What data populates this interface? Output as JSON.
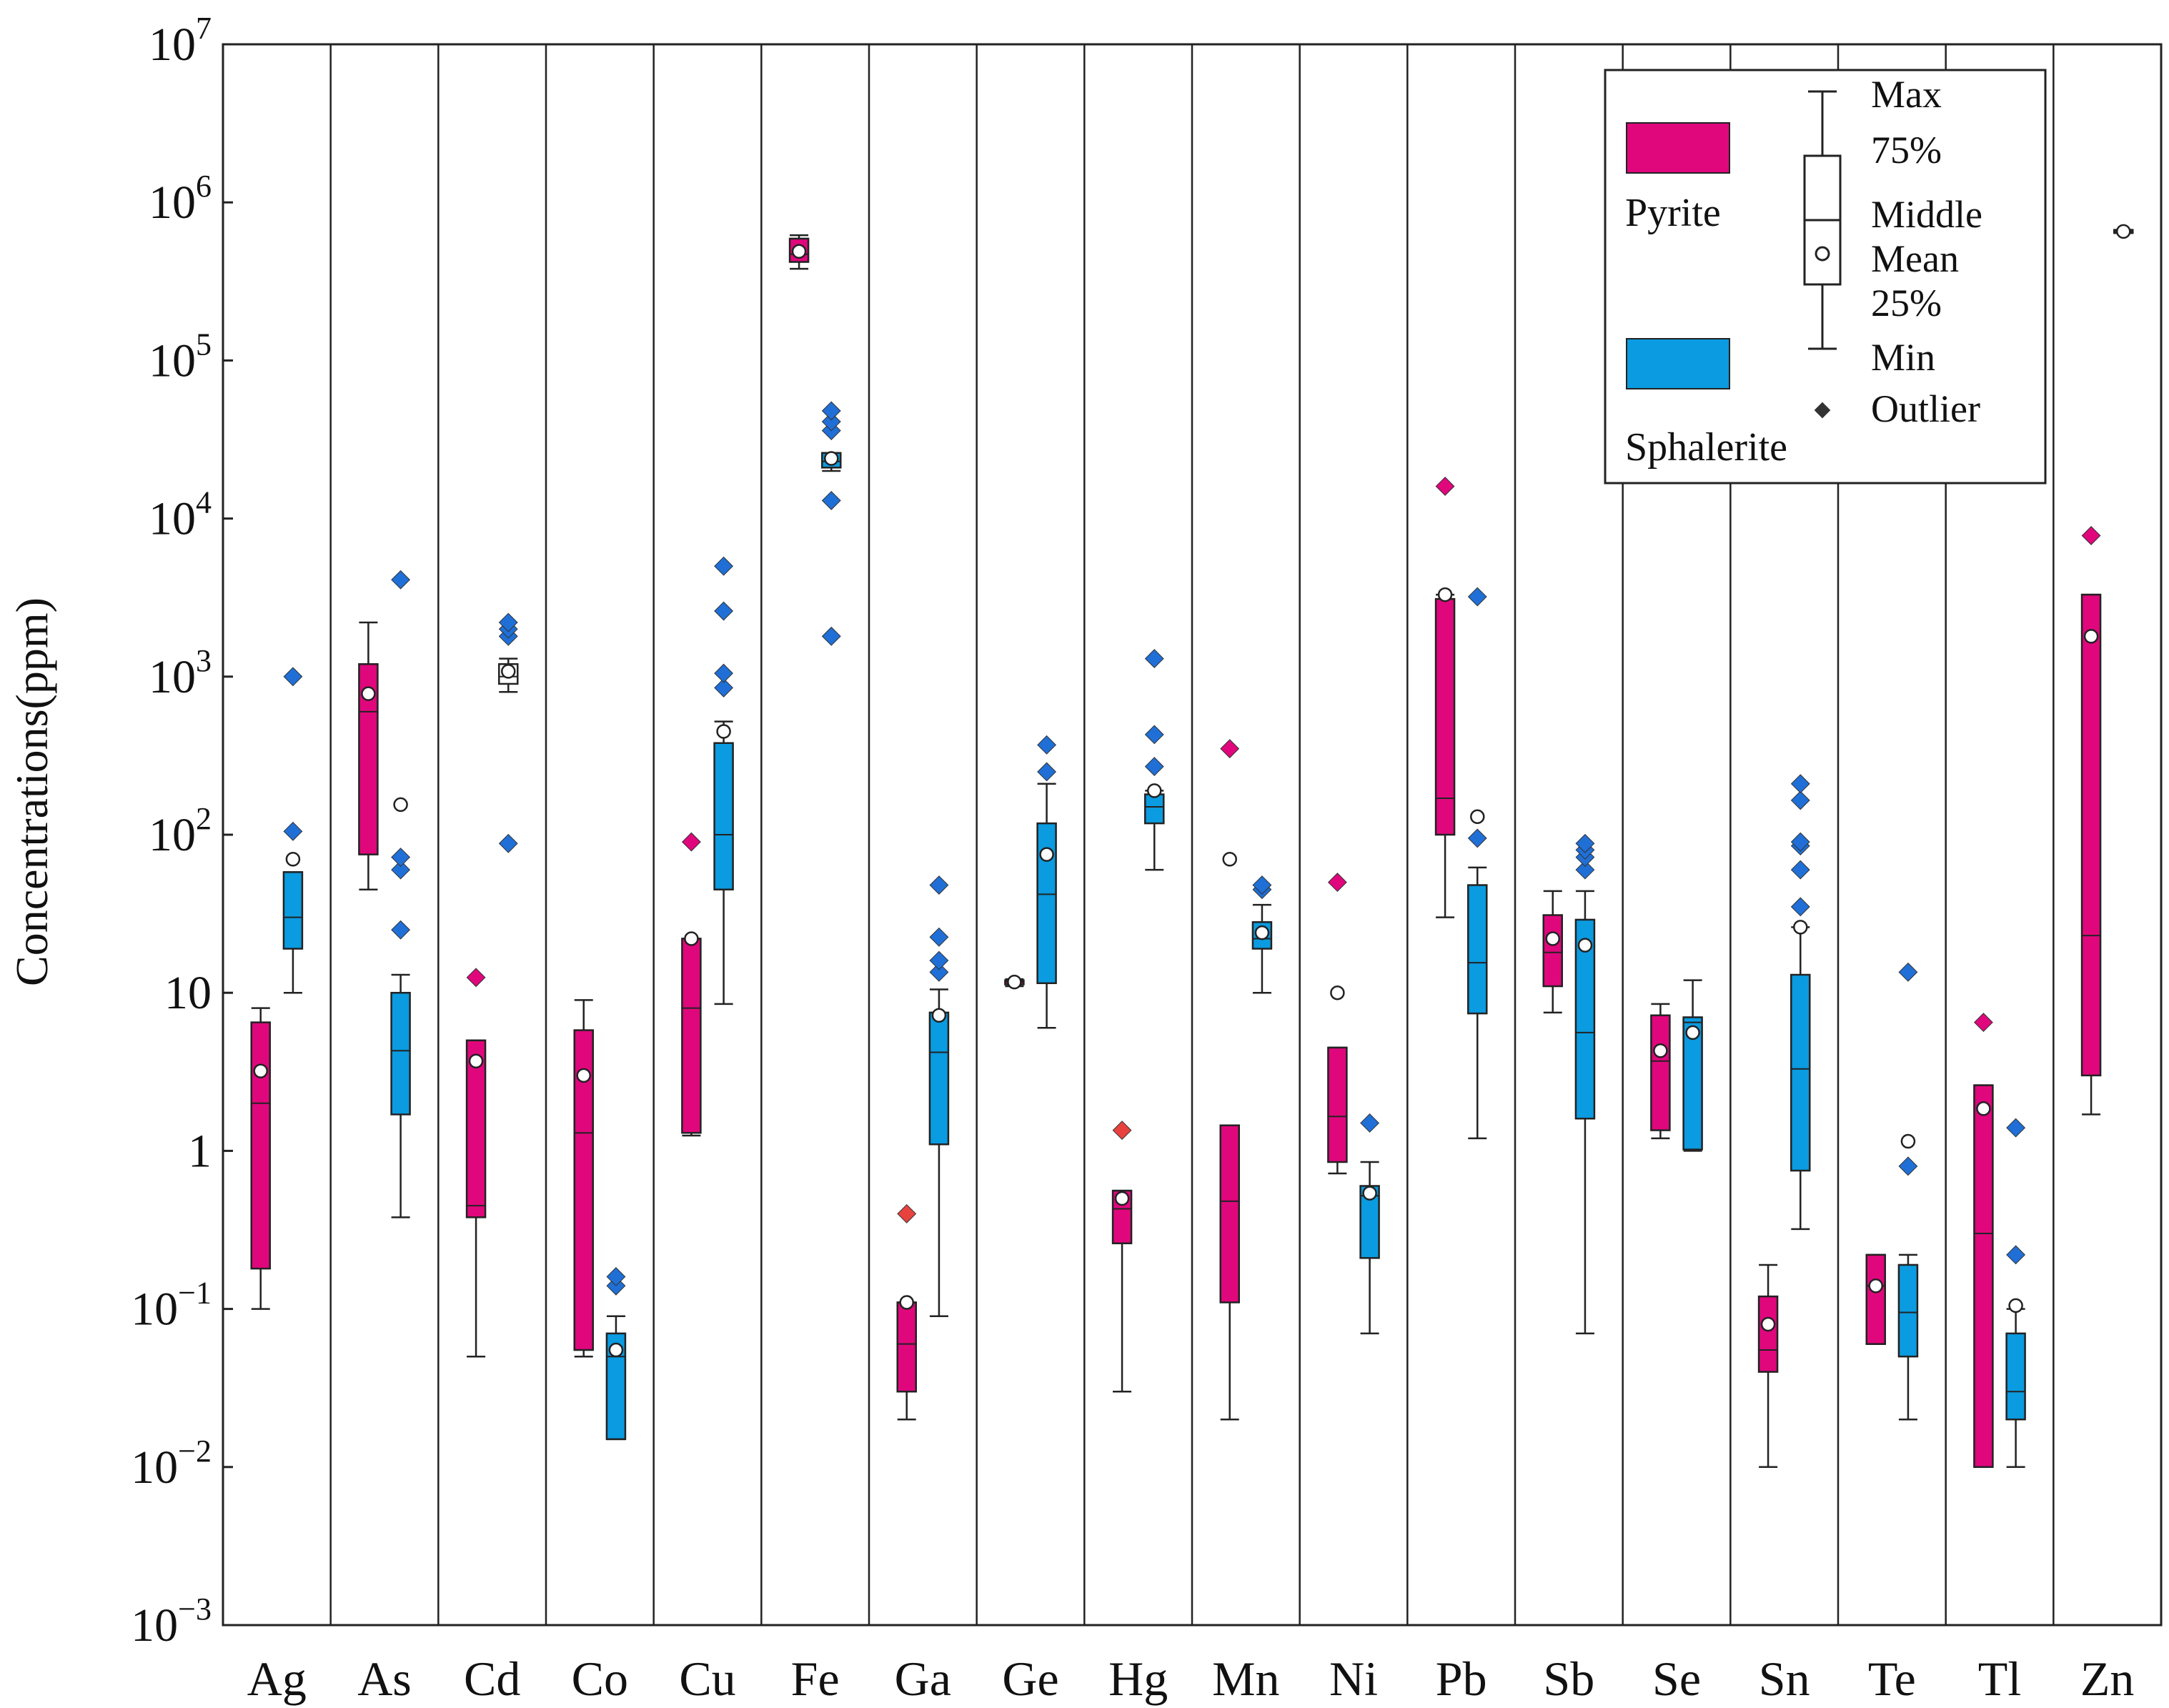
{
  "colors": {
    "pyrite": "#e0077d",
    "sphalerite": "#0a9be0",
    "outlier_pyrite": "#e0077d",
    "outlier_sphalerite": "#1f6fd6",
    "outlier_ga": "#e8423f",
    "axis": "#222222"
  },
  "chart_data": {
    "type": "box",
    "scale": "log10",
    "ylabel": "Concentrations(ppm)",
    "ylim": [
      0.001,
      10000000
    ],
    "y_ticks": [
      {
        "value": 0.001,
        "base": "10",
        "exp": "−3"
      },
      {
        "value": 0.01,
        "base": "10",
        "exp": "−2"
      },
      {
        "value": 0.1,
        "base": "10",
        "exp": "−1"
      },
      {
        "value": 1,
        "base": "1",
        "exp": ""
      },
      {
        "value": 10,
        "base": "10",
        "exp": ""
      },
      {
        "value": 100,
        "base": "10",
        "exp": "2"
      },
      {
        "value": 1000,
        "base": "10",
        "exp": "3"
      },
      {
        "value": 10000,
        "base": "10",
        "exp": "4"
      },
      {
        "value": 100000,
        "base": "10",
        "exp": "5"
      },
      {
        "value": 1000000,
        "base": "10",
        "exp": "6"
      },
      {
        "value": 10000000,
        "base": "10",
        "exp": "7"
      }
    ],
    "categories": [
      "Ag",
      "As",
      "Cd",
      "Co",
      "Cu",
      "Fe",
      "Ga",
      "Ge",
      "Hg",
      "Mn",
      "Ni",
      "Pb",
      "Sb",
      "Se",
      "Sn",
      "Te",
      "Tl",
      "Zn"
    ],
    "series": [
      {
        "name": "Pyrite",
        "boxes": [
          {
            "element": "Ag",
            "min": 0.1,
            "q1": 0.18,
            "median": 2,
            "q3": 6.5,
            "max": 8,
            "mean": 3.2,
            "outliers": []
          },
          {
            "element": "As",
            "min": 45,
            "q1": 75,
            "median": 600,
            "q3": 1200,
            "max": 2200,
            "mean": 780,
            "outliers": []
          },
          {
            "element": "Cd",
            "min": 0.05,
            "q1": 0.38,
            "median": 0.45,
            "q3": 5,
            "max": 5,
            "mean": 3.7,
            "outliers": [
              12.5
            ]
          },
          {
            "element": "Co",
            "min": 0.05,
            "q1": 0.055,
            "median": 1.3,
            "q3": 5.8,
            "max": 9,
            "mean": 3,
            "outliers": []
          },
          {
            "element": "Cu",
            "min": 1.25,
            "q1": 1.3,
            "median": 8,
            "q3": 22,
            "max": 22,
            "mean": 22,
            "outliers": [
              90
            ]
          },
          {
            "element": "Fe",
            "min": 380000,
            "q1": 420000,
            "median": 470000,
            "q3": 590000,
            "max": 620000,
            "mean": 490000,
            "outliers": []
          },
          {
            "element": "Ga",
            "min": 0.02,
            "q1": 0.03,
            "median": 0.06,
            "q3": 0.11,
            "max": 0.11,
            "mean": 0.11,
            "outliers": [
              0.4
            ]
          },
          {
            "element": "Ge",
            "min": 11,
            "q1": 11.3,
            "median": 11.7,
            "q3": 12,
            "max": 12.2,
            "mean": 11.7,
            "outliers": []
          },
          {
            "element": "Hg",
            "min": 0.03,
            "q1": 0.26,
            "median": 0.43,
            "q3": 0.56,
            "max": 0.56,
            "mean": 0.5,
            "outliers": [
              1.35
            ]
          },
          {
            "element": "Mn",
            "min": 0.02,
            "q1": 0.11,
            "median": 0.48,
            "q3": 1.45,
            "max": 1.45,
            "mean": 70,
            "outliers": [
              350
            ]
          },
          {
            "element": "Ni",
            "min": 0.72,
            "q1": 0.85,
            "median": 1.65,
            "q3": 4.5,
            "max": 4.5,
            "mean": 10,
            "outliers": [
              50
            ]
          },
          {
            "element": "Pb",
            "min": 30,
            "q1": 100,
            "median": 170,
            "q3": 3100,
            "max": 3300,
            "mean": 3300,
            "outliers": [
              16000
            ]
          },
          {
            "element": "Sb",
            "min": 7.5,
            "q1": 11,
            "median": 18,
            "q3": 31,
            "max": 44,
            "mean": 22,
            "outliers": []
          },
          {
            "element": "Se",
            "min": 1.2,
            "q1": 1.35,
            "median": 3.7,
            "q3": 7.2,
            "max": 8.5,
            "mean": 4.3,
            "outliers": []
          },
          {
            "element": "Sn",
            "min": 0.01,
            "q1": 0.04,
            "median": 0.055,
            "q3": 0.12,
            "max": 0.19,
            "mean": 0.08,
            "outliers": []
          },
          {
            "element": "Te",
            "min": 0.06,
            "q1": 0.06,
            "median": 0.14,
            "q3": 0.22,
            "max": 0.22,
            "mean": 0.14,
            "outliers": []
          },
          {
            "element": "Tl",
            "min": 0.01,
            "q1": 0.01,
            "median": 0.3,
            "q3": 2.6,
            "max": 2.6,
            "mean": 1.85,
            "outliers": [
              6.5
            ]
          },
          {
            "element": "Zn",
            "min": 1.7,
            "q1": 3,
            "median": 23,
            "q3": 3300,
            "max": 3300,
            "mean": 1800,
            "outliers": [
              7800
            ]
          }
        ]
      },
      {
        "name": "Sphalerite",
        "boxes": [
          {
            "element": "Ag",
            "min": 10,
            "q1": 19,
            "median": 30,
            "q3": 58,
            "max": 58,
            "mean": 70,
            "outliers": [
              105,
              1000
            ]
          },
          {
            "element": "As",
            "min": 0.38,
            "q1": 1.7,
            "median": 4.3,
            "q3": 10,
            "max": 13,
            "mean": 155,
            "outliers": [
              25,
              60,
              72,
              4100
            ]
          },
          {
            "element": "Cd",
            "min": 800,
            "q1": 900,
            "median": 1000,
            "q3": 1200,
            "max": 1300,
            "mean": 1080,
            "outliers": [
              88,
              1800,
              2000,
              2200
            ]
          },
          {
            "element": "Co",
            "min": 0.015,
            "q1": 0.015,
            "median": 0.05,
            "q3": 0.07,
            "max": 0.09,
            "mean": 0.055,
            "outliers": [
              0.14,
              0.16
            ]
          },
          {
            "element": "Cu",
            "min": 8.5,
            "q1": 45,
            "median": 100,
            "q3": 380,
            "max": 520,
            "mean": 450,
            "outliers": [
              850,
              1050,
              2600,
              5000
            ]
          },
          {
            "element": "Fe",
            "min": 20000,
            "q1": 21000,
            "median": 23000,
            "q3": 26000,
            "max": 26000,
            "mean": 24000,
            "outliers": [
              1800,
              13000,
              36000,
              41000,
              48000
            ]
          },
          {
            "element": "Ga",
            "min": 0.09,
            "q1": 1.1,
            "median": 4.2,
            "q3": 7.5,
            "max": 10.5,
            "mean": 7.2,
            "outliers": [
              13.5,
              16,
              22.5,
              48
            ]
          },
          {
            "element": "Ge",
            "min": 6,
            "q1": 11.5,
            "median": 42,
            "q3": 118,
            "max": 210,
            "mean": 75,
            "outliers": [
              250,
              370
            ]
          },
          {
            "element": "Hg",
            "min": 60,
            "q1": 118,
            "median": 150,
            "q3": 180,
            "max": 190,
            "mean": 190,
            "outliers": [
              270,
              430,
              1300
            ]
          },
          {
            "element": "Mn",
            "min": 10,
            "q1": 19,
            "median": 22,
            "q3": 28,
            "max": 36,
            "mean": 24,
            "outliers": [
              45,
              48
            ]
          },
          {
            "element": "Ni",
            "min": 0.07,
            "q1": 0.21,
            "median": 0.52,
            "q3": 0.6,
            "max": 0.85,
            "mean": 0.54,
            "outliers": [
              1.5
            ]
          },
          {
            "element": "Pb",
            "min": 1.2,
            "q1": 7.4,
            "median": 15.5,
            "q3": 48,
            "max": 62,
            "mean": 130,
            "outliers": [
              95,
              3200
            ]
          },
          {
            "element": "Sb",
            "min": 0.07,
            "q1": 1.6,
            "median": 5.6,
            "q3": 29,
            "max": 44,
            "mean": 20,
            "outliers": [
              60,
              72,
              80,
              88
            ]
          },
          {
            "element": "Se",
            "min": 1,
            "q1": 1.02,
            "median": 6.5,
            "q3": 7,
            "max": 12,
            "mean": 5.6,
            "outliers": []
          },
          {
            "element": "Sn",
            "min": 0.32,
            "q1": 0.75,
            "median": 3.3,
            "q3": 13,
            "max": 26,
            "mean": 26,
            "outliers": [
              35,
              60,
              85,
              90,
              165,
              210
            ]
          },
          {
            "element": "Te",
            "min": 0.02,
            "q1": 0.05,
            "median": 0.095,
            "q3": 0.19,
            "max": 0.22,
            "mean": 1.15,
            "outliers": [
              0.8,
              13.5
            ]
          },
          {
            "element": "Tl",
            "min": 0.01,
            "q1": 0.02,
            "median": 0.03,
            "q3": 0.07,
            "max": 0.1,
            "mean": 0.105,
            "outliers": [
              0.22,
              1.4
            ]
          },
          {
            "element": "Zn",
            "min": 640000,
            "q1": 640000,
            "median": 655000,
            "q3": 670000,
            "max": 670000,
            "mean": 655000,
            "outliers": []
          }
        ]
      }
    ],
    "legend": {
      "position": "top-right",
      "series_labels": [
        "Pyrite",
        "Sphalerite"
      ],
      "box_labels": [
        "Max",
        "75%",
        "Middle",
        "Mean",
        "25%",
        "Min",
        "Outlier"
      ]
    }
  }
}
